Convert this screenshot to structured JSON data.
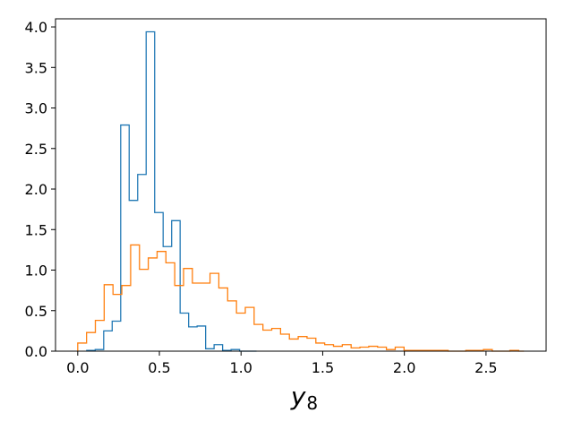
{
  "chart_data": {
    "type": "histogram",
    "title": "",
    "xlabel": {
      "main": "y",
      "subscript": "8"
    },
    "ylabel": "",
    "xlim": [
      -0.136,
      2.868
    ],
    "ylim": [
      0,
      4.1
    ],
    "grid": false,
    "legend": "none",
    "x_ticks": [
      {
        "value": 0.0,
        "label": "0.0"
      },
      {
        "value": 0.5,
        "label": "0.5"
      },
      {
        "value": 1.0,
        "label": "1.0"
      },
      {
        "value": 1.5,
        "label": "1.5"
      },
      {
        "value": 2.0,
        "label": "2.0"
      },
      {
        "value": 2.5,
        "label": "2.5"
      }
    ],
    "y_ticks": [
      {
        "value": 0.0,
        "label": "0.0"
      },
      {
        "value": 0.5,
        "label": "0.5"
      },
      {
        "value": 1.0,
        "label": "1.0"
      },
      {
        "value": 1.5,
        "label": "1.5"
      },
      {
        "value": 2.0,
        "label": "2.0"
      },
      {
        "value": 2.5,
        "label": "2.5"
      },
      {
        "value": 3.0,
        "label": "3.0"
      },
      {
        "value": 3.5,
        "label": "3.5"
      },
      {
        "value": 4.0,
        "label": "4.0"
      }
    ],
    "series": [
      {
        "color": "#1f77b4",
        "edges": [
          0.055,
          0.107,
          0.159,
          0.211,
          0.263,
          0.315,
          0.367,
          0.419,
          0.471,
          0.523,
          0.575,
          0.627,
          0.679,
          0.731,
          0.783,
          0.835,
          0.887,
          0.939,
          0.991,
          1.043,
          1.095
        ],
        "values": [
          0.01,
          0.02,
          0.25,
          0.37,
          2.79,
          1.86,
          2.18,
          3.94,
          1.71,
          1.29,
          1.61,
          0.47,
          0.3,
          0.31,
          0.03,
          0.08,
          0.01,
          0.02,
          0.0,
          0.0
        ]
      },
      {
        "color": "#ff7f0e",
        "edges": [
          0.0,
          0.054,
          0.108,
          0.162,
          0.216,
          0.27,
          0.324,
          0.378,
          0.432,
          0.486,
          0.54,
          0.594,
          0.648,
          0.702,
          0.756,
          0.81,
          0.864,
          0.918,
          0.972,
          1.026,
          1.08,
          1.134,
          1.188,
          1.242,
          1.296,
          1.35,
          1.404,
          1.458,
          1.512,
          1.566,
          1.62,
          1.674,
          1.728,
          1.782,
          1.836,
          1.89,
          1.944,
          1.998,
          2.052,
          2.106,
          2.16,
          2.214,
          2.268,
          2.322,
          2.376,
          2.43,
          2.484,
          2.538,
          2.592,
          2.646,
          2.7,
          2.732
        ],
        "values": [
          0.1,
          0.23,
          0.38,
          0.82,
          0.7,
          0.81,
          1.31,
          1.01,
          1.15,
          1.23,
          1.09,
          0.81,
          1.02,
          0.84,
          0.84,
          0.96,
          0.78,
          0.62,
          0.47,
          0.54,
          0.33,
          0.26,
          0.28,
          0.21,
          0.15,
          0.18,
          0.16,
          0.1,
          0.08,
          0.06,
          0.08,
          0.04,
          0.05,
          0.06,
          0.05,
          0.02,
          0.05,
          0.01,
          0.01,
          0.01,
          0.01,
          0.01,
          0.0,
          0.0,
          0.01,
          0.01,
          0.02,
          0.0,
          0.0,
          0.01,
          0.0
        ]
      }
    ]
  }
}
